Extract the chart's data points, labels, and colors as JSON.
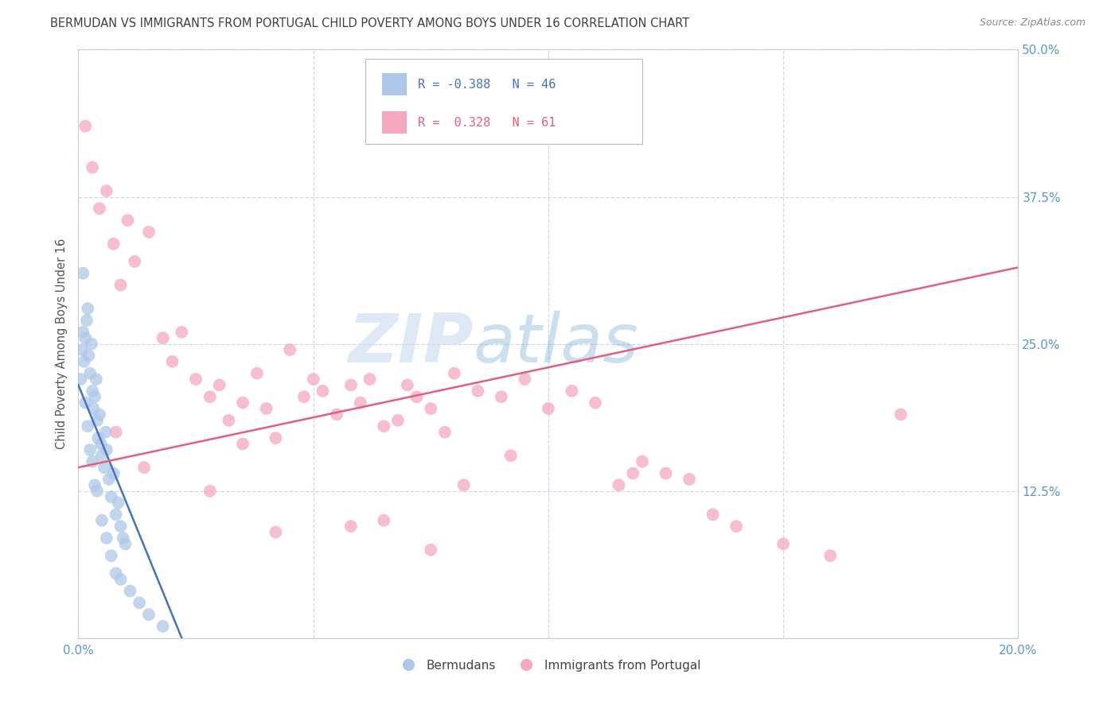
{
  "title": "BERMUDAN VS IMMIGRANTS FROM PORTUGAL CHILD POVERTY AMONG BOYS UNDER 16 CORRELATION CHART",
  "source": "Source: ZipAtlas.com",
  "ylabel": "Child Poverty Among Boys Under 16",
  "x_tick_labels": [
    "0.0%",
    "",
    "",
    "",
    "20.0%"
  ],
  "x_tick_values": [
    0.0,
    5.0,
    10.0,
    15.0,
    20.0
  ],
  "y_tick_labels": [
    "",
    "12.5%",
    "25.0%",
    "37.5%",
    "50.0%"
  ],
  "y_tick_values": [
    0.0,
    12.5,
    25.0,
    37.5,
    50.0
  ],
  "xlim": [
    0.0,
    20.0
  ],
  "ylim": [
    0.0,
    50.0
  ],
  "watermark_zip": "ZIP",
  "watermark_atlas": "atlas",
  "legend_R_blue": "-0.388",
  "legend_N_blue": "46",
  "legend_R_pink": "0.328",
  "legend_N_pink": "61",
  "legend_label_blue": "Bermudans",
  "legend_label_pink": "Immigrants from Portugal",
  "blue_color": "#adc8e8",
  "blue_edge": "#adc8e8",
  "pink_color": "#f5a8be",
  "pink_edge": "#f5a8be",
  "blue_line_color": "#4472c4",
  "pink_line_color": "#e06080",
  "title_color": "#404040",
  "tick_color": "#5599cc",
  "grid_color": "#d0d8e8",
  "blue_scatter_x": [
    0.05,
    0.08,
    0.1,
    0.12,
    0.15,
    0.18,
    0.2,
    0.22,
    0.25,
    0.28,
    0.3,
    0.32,
    0.35,
    0.38,
    0.4,
    0.42,
    0.45,
    0.48,
    0.5,
    0.55,
    0.58,
    0.6,
    0.65,
    0.7,
    0.75,
    0.8,
    0.85,
    0.9,
    0.95,
    1.0,
    0.15,
    0.2,
    0.25,
    0.3,
    0.35,
    0.4,
    0.5,
    0.6,
    0.7,
    0.8,
    0.9,
    1.1,
    1.3,
    1.5,
    1.8,
    0.1
  ],
  "blue_scatter_y": [
    22.0,
    24.5,
    26.0,
    23.5,
    25.5,
    27.0,
    28.0,
    24.0,
    22.5,
    25.0,
    21.0,
    19.5,
    20.5,
    22.0,
    18.5,
    17.0,
    19.0,
    16.5,
    15.5,
    14.5,
    17.5,
    16.0,
    13.5,
    12.0,
    14.0,
    10.5,
    11.5,
    9.5,
    8.5,
    8.0,
    20.0,
    18.0,
    16.0,
    15.0,
    13.0,
    12.5,
    10.0,
    8.5,
    7.0,
    5.5,
    5.0,
    4.0,
    3.0,
    2.0,
    1.0,
    31.0
  ],
  "pink_scatter_x": [
    0.15,
    0.3,
    0.45,
    0.6,
    0.75,
    0.9,
    1.05,
    1.2,
    1.5,
    1.8,
    2.0,
    2.2,
    2.5,
    2.8,
    3.0,
    3.2,
    3.5,
    3.8,
    4.0,
    4.2,
    4.5,
    4.8,
    5.0,
    5.2,
    5.5,
    5.8,
    6.0,
    6.2,
    6.5,
    6.8,
    7.0,
    7.2,
    7.5,
    7.8,
    8.0,
    8.5,
    9.0,
    9.5,
    10.0,
    10.5,
    11.0,
    11.5,
    12.0,
    12.5,
    13.0,
    13.5,
    14.0,
    15.0,
    16.0,
    17.5,
    4.2,
    6.5,
    8.2,
    9.2,
    3.5,
    2.8,
    1.4,
    0.8,
    5.8,
    7.5,
    11.8
  ],
  "pink_scatter_y": [
    43.5,
    40.0,
    36.5,
    38.0,
    33.5,
    30.0,
    35.5,
    32.0,
    34.5,
    25.5,
    23.5,
    26.0,
    22.0,
    20.5,
    21.5,
    18.5,
    20.0,
    22.5,
    19.5,
    17.0,
    24.5,
    20.5,
    22.0,
    21.0,
    19.0,
    21.5,
    20.0,
    22.0,
    18.0,
    18.5,
    21.5,
    20.5,
    19.5,
    17.5,
    22.5,
    21.0,
    20.5,
    22.0,
    19.5,
    21.0,
    20.0,
    13.0,
    15.0,
    14.0,
    13.5,
    10.5,
    9.5,
    8.0,
    7.0,
    19.0,
    9.0,
    10.0,
    13.0,
    15.5,
    16.5,
    12.5,
    14.5,
    17.5,
    9.5,
    7.5,
    14.0
  ],
  "blue_line_x": [
    0.0,
    2.2
  ],
  "blue_line_y": [
    21.5,
    0.0
  ],
  "pink_line_x": [
    0.0,
    20.0
  ],
  "pink_line_y": [
    14.5,
    31.5
  ]
}
